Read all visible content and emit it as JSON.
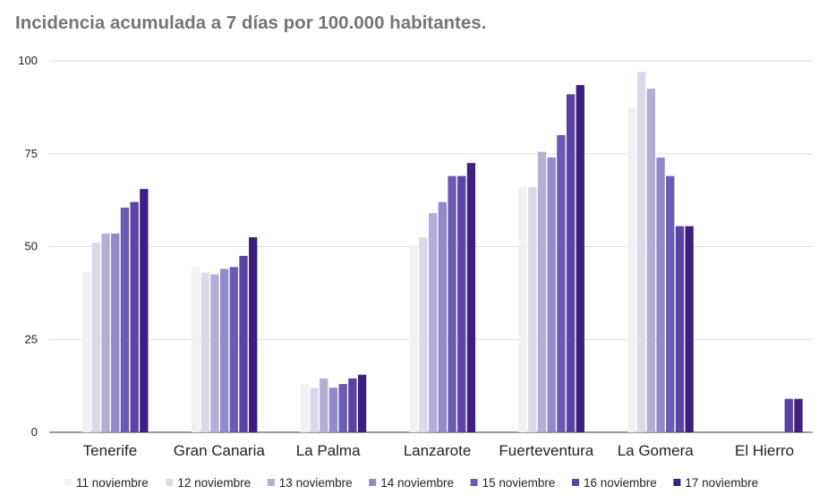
{
  "chart_data": {
    "type": "bar",
    "title": "Incidencia acumulada a 7 días por 100.000 habitantes.",
    "xlabel": "",
    "ylabel": "",
    "ylim": [
      0,
      100
    ],
    "yticks": [
      0,
      25,
      50,
      75,
      100
    ],
    "grid": true,
    "legend_position": "bottom",
    "categories": [
      "Tenerife",
      "Gran Canaria",
      "La Palma",
      "Lanzarote",
      "Fuerteventura",
      "La Gomera",
      "El Hierro"
    ],
    "series": [
      {
        "name": "11 noviembre",
        "color": "#f1f1f3",
        "values": [
          43,
          44.5,
          13,
          50.5,
          66,
          87.5,
          0
        ]
      },
      {
        "name": "12 noviembre",
        "color": "#dcd8ea",
        "values": [
          51,
          43,
          12,
          52.5,
          66,
          97,
          0
        ]
      },
      {
        "name": "13 noviembre",
        "color": "#b4aed6",
        "values": [
          53.5,
          42.5,
          14.5,
          59,
          75.5,
          92.5,
          0
        ]
      },
      {
        "name": "14 noviembre",
        "color": "#918ac8",
        "values": [
          53.5,
          44,
          12,
          62,
          74,
          74,
          0
        ]
      },
      {
        "name": "15 noviembre",
        "color": "#6b5bb4",
        "values": [
          60.5,
          44.5,
          13,
          69,
          80,
          69,
          0
        ]
      },
      {
        "name": "16 noviembre",
        "color": "#5a43a2",
        "values": [
          62,
          47.5,
          14.5,
          69,
          91,
          55.5,
          9
        ]
      },
      {
        "name": "17 noviembre",
        "color": "#3c1f80",
        "values": [
          65.5,
          52.5,
          15.5,
          72.5,
          93.5,
          55.5,
          9
        ]
      }
    ]
  }
}
